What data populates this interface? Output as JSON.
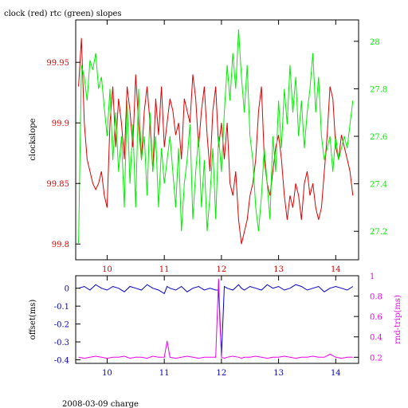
{
  "title": "clock (red) rtc (green) slopes",
  "footer": "2008-03-09 charge",
  "colors": {
    "clock": "#dd0000",
    "rtc": "#00ee00",
    "offset": "#0000cc",
    "rnd_trip": "#ee00ee",
    "axis": "#000000"
  },
  "chart_data": [
    {
      "type": "line",
      "x_ticks": [
        10,
        11,
        12,
        13,
        14
      ],
      "xlim": [
        9.45,
        14.4
      ],
      "left_axis": {
        "label": "clockslope",
        "ylim": [
          99.787,
          99.985
        ],
        "ticks": [
          99.8,
          99.85,
          99.9,
          99.95
        ],
        "tick_labels": [
          "99.8",
          "99.85",
          "99.9",
          "99.95"
        ],
        "color": "#dd0000"
      },
      "right_axis": {
        "label": "",
        "ylim": [
          27.08,
          28.09
        ],
        "ticks": [
          27.2,
          27.4,
          27.6,
          27.8,
          28
        ],
        "tick_labels": [
          "27.2",
          "27.4",
          "27.6",
          "27.8",
          "28"
        ],
        "color": "#00ee00"
      },
      "series": [
        {
          "axis": "left",
          "color": "#dd0000",
          "x": [
            9.5,
            9.55,
            9.6,
            9.65,
            9.7,
            9.75,
            9.8,
            9.85,
            9.9,
            9.95,
            10.0,
            10.05,
            10.1,
            10.15,
            10.2,
            10.25,
            10.3,
            10.35,
            10.4,
            10.45,
            10.5,
            10.55,
            10.6,
            10.65,
            10.7,
            10.75,
            10.8,
            10.85,
            10.9,
            10.95,
            11.0,
            11.05,
            11.1,
            11.15,
            11.2,
            11.25,
            11.3,
            11.35,
            11.4,
            11.45,
            11.5,
            11.55,
            11.6,
            11.65,
            11.7,
            11.75,
            11.8,
            11.85,
            11.9,
            11.95,
            12.0,
            12.05,
            12.1,
            12.15,
            12.2,
            12.25,
            12.3,
            12.35,
            12.4,
            12.45,
            12.5,
            12.55,
            12.6,
            12.65,
            12.7,
            12.75,
            12.8,
            12.85,
            12.9,
            12.95,
            13.0,
            13.05,
            13.1,
            13.15,
            13.2,
            13.25,
            13.3,
            13.35,
            13.4,
            13.45,
            13.5,
            13.55,
            13.6,
            13.65,
            13.7,
            13.75,
            13.8,
            13.85,
            13.9,
            13.95,
            14.0,
            14.05,
            14.1,
            14.15,
            14.2,
            14.25,
            14.3
          ],
          "values": [
            99.93,
            99.97,
            99.9,
            99.87,
            99.86,
            99.85,
            99.845,
            99.85,
            99.86,
            99.84,
            99.83,
            99.9,
            99.93,
            99.88,
            99.92,
            99.9,
            99.87,
            99.93,
            99.91,
            99.88,
            99.94,
            99.9,
            99.87,
            99.91,
            99.93,
            99.9,
            99.86,
            99.92,
            99.89,
            99.93,
            99.88,
            99.9,
            99.92,
            99.91,
            99.89,
            99.9,
            99.87,
            99.92,
            99.91,
            99.9,
            99.94,
            99.92,
            99.88,
            99.91,
            99.93,
            99.89,
            99.86,
            99.91,
            99.93,
            99.88,
            99.9,
            99.87,
            99.9,
            99.85,
            99.84,
            99.86,
            99.82,
            99.8,
            99.81,
            99.82,
            99.84,
            99.85,
            99.87,
            99.91,
            99.93,
            99.87,
            99.85,
            99.84,
            99.86,
            99.88,
            99.89,
            99.87,
            99.84,
            99.82,
            99.84,
            99.83,
            99.85,
            99.84,
            99.82,
            99.85,
            99.86,
            99.84,
            99.85,
            99.83,
            99.82,
            99.83,
            99.86,
            99.89,
            99.93,
            99.92,
            99.88,
            99.87,
            99.89,
            99.88,
            99.87,
            99.86,
            99.84
          ]
        },
        {
          "axis": "right",
          "color": "#00ee00",
          "x": [
            9.5,
            9.55,
            9.6,
            9.65,
            9.7,
            9.75,
            9.8,
            9.85,
            9.9,
            9.95,
            10.0,
            10.05,
            10.1,
            10.15,
            10.2,
            10.25,
            10.3,
            10.35,
            10.4,
            10.45,
            10.5,
            10.55,
            10.6,
            10.65,
            10.7,
            10.75,
            10.8,
            10.85,
            10.9,
            10.95,
            11.0,
            11.05,
            11.1,
            11.15,
            11.2,
            11.25,
            11.3,
            11.35,
            11.4,
            11.45,
            11.5,
            11.55,
            11.6,
            11.65,
            11.7,
            11.75,
            11.8,
            11.85,
            11.9,
            11.95,
            12.0,
            12.05,
            12.1,
            12.15,
            12.2,
            12.25,
            12.3,
            12.35,
            12.4,
            12.45,
            12.5,
            12.55,
            12.6,
            12.65,
            12.7,
            12.75,
            12.8,
            12.85,
            12.9,
            12.95,
            13.0,
            13.05,
            13.1,
            13.15,
            13.2,
            13.25,
            13.3,
            13.35,
            13.4,
            13.45,
            13.5,
            13.55,
            13.6,
            13.65,
            13.7,
            13.75,
            13.8,
            13.85,
            13.9,
            13.95,
            14.0,
            14.05,
            14.1,
            14.15,
            14.2,
            14.25,
            14.3
          ],
          "values": [
            27.15,
            27.9,
            27.85,
            27.75,
            27.92,
            27.88,
            27.95,
            27.8,
            27.85,
            27.72,
            27.6,
            27.8,
            27.5,
            27.7,
            27.45,
            27.6,
            27.3,
            27.75,
            27.4,
            27.65,
            27.3,
            27.8,
            27.5,
            27.6,
            27.35,
            27.7,
            27.45,
            27.6,
            27.3,
            27.55,
            27.4,
            27.5,
            27.6,
            27.45,
            27.3,
            27.55,
            27.2,
            27.4,
            27.5,
            27.65,
            27.25,
            27.45,
            27.6,
            27.3,
            27.5,
            27.2,
            27.35,
            27.55,
            27.25,
            27.6,
            27.45,
            27.7,
            27.9,
            27.75,
            27.95,
            27.8,
            28.05,
            27.85,
            27.7,
            27.9,
            27.6,
            27.5,
            27.3,
            27.2,
            27.35,
            27.55,
            27.4,
            27.25,
            27.6,
            27.45,
            27.75,
            27.55,
            27.8,
            27.65,
            27.9,
            27.7,
            27.85,
            27.6,
            27.75,
            27.55,
            27.7,
            27.8,
            27.95,
            27.7,
            27.85,
            27.6,
            27.5,
            27.55,
            27.6,
            27.45,
            27.6,
            27.5,
            27.55,
            27.6,
            27.55,
            27.65,
            27.75
          ]
        }
      ]
    },
    {
      "type": "line",
      "x_ticks": [
        10,
        11,
        12,
        13,
        14
      ],
      "xlim": [
        9.45,
        14.4
      ],
      "left_axis": {
        "label": "offset(ms)",
        "ylim": [
          -0.42,
          0.07
        ],
        "ticks": [
          -0.4,
          -0.3,
          -0.2,
          -0.1,
          0
        ],
        "tick_labels": [
          "-0.4",
          "-0.3",
          "-0.2",
          "-0.1",
          "0"
        ],
        "color": "#0000cc"
      },
      "right_axis": {
        "label": "rnd-trip(ms)",
        "ylim": [
          0.14,
          1.0
        ],
        "ticks": [
          0.2,
          0.4,
          0.6,
          0.8,
          1
        ],
        "tick_labels": [
          "0.2",
          "0.4",
          "0.6",
          "0.8",
          "1"
        ],
        "color": "#ee00ee"
      },
      "series": [
        {
          "axis": "left",
          "color": "#0000cc",
          "x": [
            9.5,
            9.6,
            9.7,
            9.8,
            9.9,
            10.0,
            10.1,
            10.2,
            10.3,
            10.4,
            10.5,
            10.6,
            10.7,
            10.8,
            10.9,
            11.0,
            11.05,
            11.1,
            11.2,
            11.3,
            11.4,
            11.5,
            11.6,
            11.7,
            11.8,
            11.9,
            11.95,
            12.0,
            12.05,
            12.1,
            12.2,
            12.3,
            12.35,
            12.4,
            12.5,
            12.6,
            12.7,
            12.8,
            12.9,
            13.0,
            13.1,
            13.2,
            13.3,
            13.4,
            13.5,
            13.6,
            13.7,
            13.8,
            13.9,
            14.0,
            14.1,
            14.2,
            14.3
          ],
          "values": [
            0.0,
            0.01,
            -0.01,
            0.02,
            0.0,
            -0.01,
            0.01,
            0.0,
            -0.02,
            0.01,
            0.0,
            -0.01,
            0.02,
            0.0,
            -0.01,
            -0.03,
            0.01,
            0.0,
            -0.01,
            0.01,
            -0.02,
            0.0,
            0.01,
            -0.01,
            0.0,
            -0.01,
            -0.01,
            -0.38,
            0.01,
            0.0,
            -0.01,
            0.02,
            0.0,
            -0.01,
            0.01,
            0.0,
            -0.01,
            0.02,
            0.0,
            0.01,
            -0.01,
            0.0,
            0.02,
            0.01,
            -0.01,
            0.0,
            0.01,
            -0.02,
            0.0,
            0.01,
            0.0,
            -0.01,
            0.01
          ]
        },
        {
          "axis": "right",
          "color": "#ee00ee",
          "x": [
            9.5,
            9.6,
            9.7,
            9.8,
            9.9,
            10.0,
            10.1,
            10.2,
            10.3,
            10.4,
            10.5,
            10.6,
            10.7,
            10.8,
            10.9,
            11.0,
            11.05,
            11.1,
            11.2,
            11.3,
            11.4,
            11.5,
            11.6,
            11.7,
            11.8,
            11.9,
            11.95,
            12.0,
            12.05,
            12.1,
            12.2,
            12.3,
            12.35,
            12.4,
            12.5,
            12.6,
            12.7,
            12.8,
            12.9,
            13.0,
            13.1,
            13.2,
            13.3,
            13.4,
            13.5,
            13.6,
            13.7,
            13.8,
            13.9,
            14.0,
            14.1,
            14.2,
            14.3
          ],
          "values": [
            0.2,
            0.19,
            0.2,
            0.21,
            0.2,
            0.19,
            0.2,
            0.2,
            0.21,
            0.19,
            0.2,
            0.2,
            0.19,
            0.21,
            0.2,
            0.2,
            0.36,
            0.2,
            0.19,
            0.2,
            0.21,
            0.2,
            0.19,
            0.2,
            0.2,
            0.2,
            0.97,
            0.2,
            0.19,
            0.2,
            0.21,
            0.2,
            0.19,
            0.2,
            0.2,
            0.21,
            0.2,
            0.19,
            0.2,
            0.2,
            0.21,
            0.2,
            0.19,
            0.2,
            0.2,
            0.21,
            0.2,
            0.2,
            0.23,
            0.2,
            0.19,
            0.2,
            0.2
          ]
        }
      ]
    }
  ]
}
